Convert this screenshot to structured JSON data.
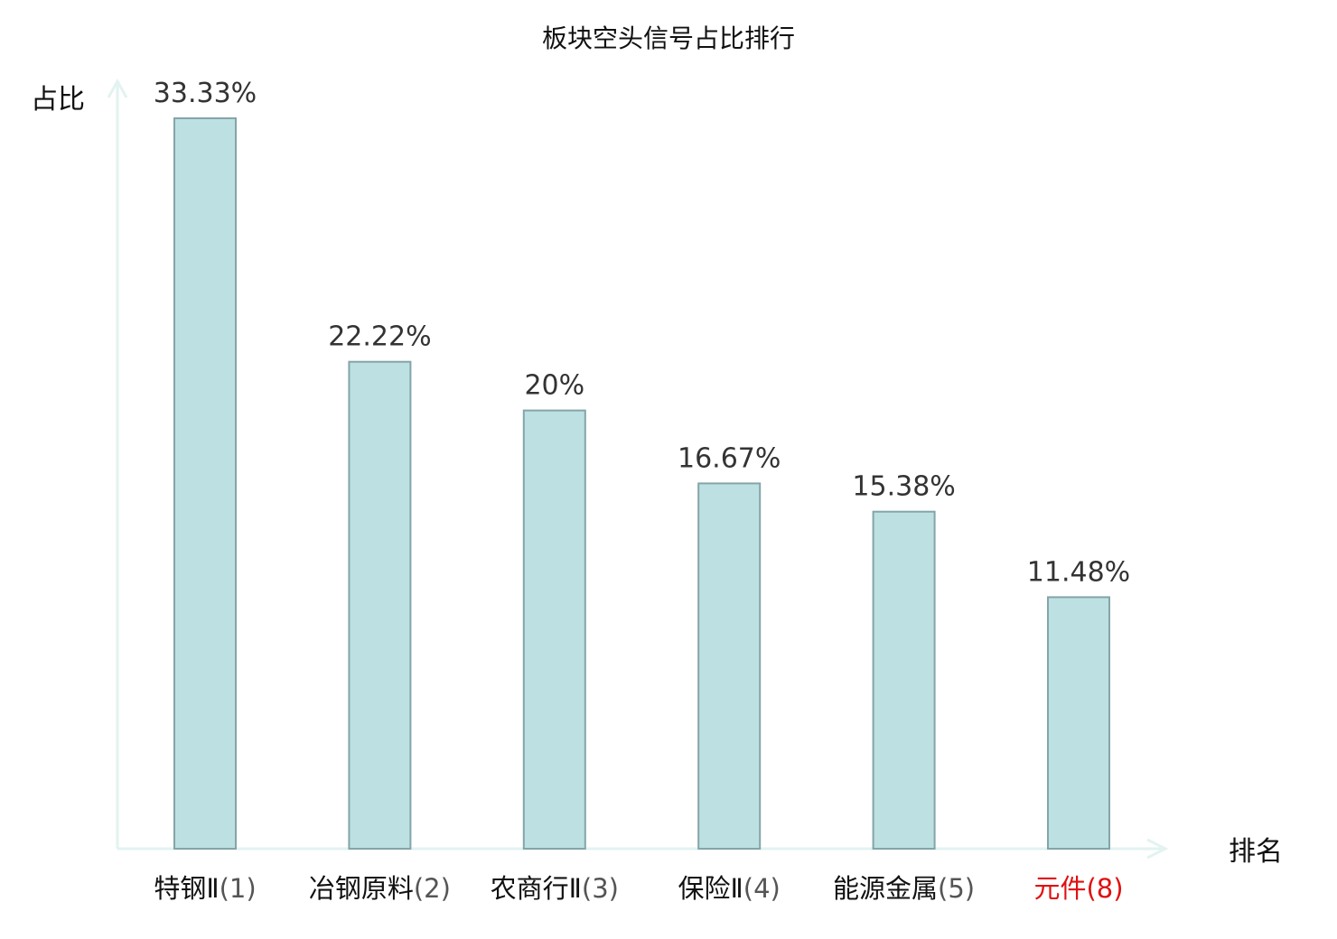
{
  "chart_data": {
    "type": "bar",
    "title": "板块空头信号占比排行",
    "xlabel": "排名",
    "ylabel": "占比",
    "categories": [
      {
        "name": "特钢Ⅱ",
        "rank": "(1)",
        "highlight": false
      },
      {
        "name": "冶钢原料",
        "rank": "(2)",
        "highlight": false
      },
      {
        "name": "农商行Ⅱ",
        "rank": "(3)",
        "highlight": false
      },
      {
        "name": "保险Ⅱ",
        "rank": "(4)",
        "highlight": false
      },
      {
        "name": "能源金属",
        "rank": "(5)",
        "highlight": false
      },
      {
        "name": "元件",
        "rank": "(8)",
        "highlight": true
      }
    ],
    "values": [
      33.33,
      22.22,
      20,
      16.67,
      15.38,
      11.48
    ],
    "value_labels": [
      "33.33%",
      "22.22%",
      "20%",
      "16.67%",
      "15.38%",
      "11.48%"
    ],
    "ylim": [
      0,
      33.33
    ],
    "grid": false,
    "legend": "none"
  },
  "colors": {
    "bar_fill": "#bde0e3",
    "bar_stroke": "#84a5a8",
    "axis": "#e2f3f1",
    "label_text": "#111111",
    "value_text": "#333333",
    "rank_text": "#555555",
    "highlight": "#e01010"
  }
}
